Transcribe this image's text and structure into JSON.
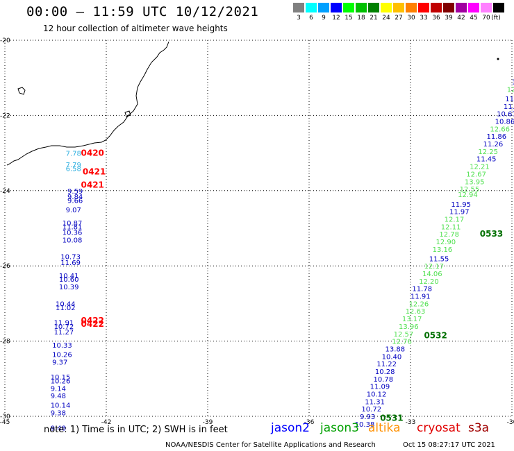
{
  "header": {
    "title": "00:00 — 11:59 UTC 10/12/2021",
    "subtitle": "12 hour collection of altimeter wave heights"
  },
  "scale": {
    "unit": "(ft)",
    "bins": [
      {
        "label": "3",
        "color": "#808080"
      },
      {
        "label": "6",
        "color": "#00ffff"
      },
      {
        "label": "9",
        "color": "#00a0ff"
      },
      {
        "label": "12",
        "color": "#0000ff"
      },
      {
        "label": "15",
        "color": "#00ff00"
      },
      {
        "label": "18",
        "color": "#00c000"
      },
      {
        "label": "21",
        "color": "#008000"
      },
      {
        "label": "24",
        "color": "#ffff00"
      },
      {
        "label": "27",
        "color": "#ffc000"
      },
      {
        "label": "30",
        "color": "#ff8000"
      },
      {
        "label": "33",
        "color": "#ff0000"
      },
      {
        "label": "36",
        "color": "#c00000"
      },
      {
        "label": "39",
        "color": "#800000"
      },
      {
        "label": "42",
        "color": "#a000a0"
      },
      {
        "label": "45",
        "color": "#ff00ff"
      },
      {
        "label": "70",
        "color": "#ff80ff"
      },
      {
        "label": "",
        "color": "#000000"
      }
    ]
  },
  "axes": {
    "lon_ticks": [
      "-45",
      "-42",
      "-39",
      "-36",
      "-33",
      "-30"
    ],
    "lat_ticks": [
      "-20",
      "-22",
      "-24",
      "-26",
      "-28",
      "-30"
    ]
  },
  "tracks": {
    "west": [
      {
        "lon": -43.2,
        "lat": -23.0,
        "v": "7.78",
        "c": "#30b0e0"
      },
      {
        "lon": -43.2,
        "lat": -23.3,
        "v": "7.79",
        "c": "#30b0e0"
      },
      {
        "lon": -43.2,
        "lat": -23.4,
        "v": "6.58",
        "c": "#30b0e0"
      },
      {
        "lon": -43.15,
        "lat": -24.0,
        "v": "9.59",
        "c": "#0000c0"
      },
      {
        "lon": -43.15,
        "lat": -24.15,
        "v": "9.84",
        "c": "#0000c0"
      },
      {
        "lon": -43.15,
        "lat": -24.25,
        "v": "9.66",
        "c": "#0000c0"
      },
      {
        "lon": -43.2,
        "lat": -24.5,
        "v": "9.07",
        "c": "#0000c0"
      },
      {
        "lon": -43.3,
        "lat": -24.85,
        "v": "10.87",
        "c": "#0000c0"
      },
      {
        "lon": -43.3,
        "lat": -24.95,
        "v": "11.81",
        "c": "#0000c0"
      },
      {
        "lon": -43.3,
        "lat": -25.1,
        "v": "10.36",
        "c": "#0000c0"
      },
      {
        "lon": -43.3,
        "lat": -25.3,
        "v": "10.08",
        "c": "#0000c0"
      },
      {
        "lon": -43.35,
        "lat": -25.75,
        "v": "10.73",
        "c": "#0000c0"
      },
      {
        "lon": -43.35,
        "lat": -25.9,
        "v": "11.69",
        "c": "#0000c0"
      },
      {
        "lon": -43.4,
        "lat": -26.25,
        "v": "10.41",
        "c": "#0000c0"
      },
      {
        "lon": -43.4,
        "lat": -26.35,
        "v": "10.60",
        "c": "#0000c0"
      },
      {
        "lon": -43.4,
        "lat": -26.55,
        "v": "10.39",
        "c": "#0000c0"
      },
      {
        "lon": -43.5,
        "lat": -27.0,
        "v": "10.44",
        "c": "#0000c0"
      },
      {
        "lon": -43.5,
        "lat": -27.1,
        "v": "11.02",
        "c": "#0000c0"
      },
      {
        "lon": -43.55,
        "lat": -27.5,
        "v": "11.91",
        "c": "#0000c0"
      },
      {
        "lon": -43.55,
        "lat": -27.6,
        "v": "10.72",
        "c": "#0000c0"
      },
      {
        "lon": -43.55,
        "lat": -27.75,
        "v": "11.27",
        "c": "#0000c0"
      },
      {
        "lon": -43.6,
        "lat": -28.1,
        "v": "10.33",
        "c": "#0000c0"
      },
      {
        "lon": -43.6,
        "lat": -28.35,
        "v": "10.26",
        "c": "#0000c0"
      },
      {
        "lon": -43.6,
        "lat": -28.55,
        "v": "9.37",
        "c": "#0000c0"
      },
      {
        "lon": -43.65,
        "lat": -28.95,
        "v": "10.15",
        "c": "#0000c0"
      },
      {
        "lon": -43.65,
        "lat": -29.05,
        "v": "10.26",
        "c": "#0000c0"
      },
      {
        "lon": -43.65,
        "lat": -29.25,
        "v": "9.14",
        "c": "#0000c0"
      },
      {
        "lon": -43.65,
        "lat": -29.45,
        "v": "9.48",
        "c": "#0000c0"
      },
      {
        "lon": -43.65,
        "lat": -29.7,
        "v": "10.14",
        "c": "#0000c0"
      },
      {
        "lon": -43.65,
        "lat": -29.9,
        "v": "9.38",
        "c": "#0000c0"
      },
      {
        "lon": -43.65,
        "lat": -29.95,
        "v": "9.48",
        "c": "#0000c0",
        "dy": 0.35
      }
    ],
    "east": [
      {
        "lon": -30.0,
        "lat": -21.1,
        "v": "10",
        "c": "#0000c0"
      },
      {
        "lon": -30.15,
        "lat": -21.3,
        "v": "12.",
        "c": "#50e050"
      },
      {
        "lon": -30.2,
        "lat": -21.55,
        "v": "11.",
        "c": "#0000c0"
      },
      {
        "lon": -30.25,
        "lat": -21.75,
        "v": "11.3",
        "c": "#0000c0"
      },
      {
        "lon": -30.45,
        "lat": -21.95,
        "v": "10.67",
        "c": "#0000c0"
      },
      {
        "lon": -30.5,
        "lat": -22.15,
        "v": "10.86",
        "c": "#0000c0"
      },
      {
        "lon": -30.65,
        "lat": -22.35,
        "v": "12.66",
        "c": "#50e050"
      },
      {
        "lon": -30.75,
        "lat": -22.55,
        "v": "11.86",
        "c": "#0000c0"
      },
      {
        "lon": -30.85,
        "lat": -22.75,
        "v": "11.26",
        "c": "#0000c0"
      },
      {
        "lon": -31.0,
        "lat": -22.95,
        "v": "12.25",
        "c": "#50e050"
      },
      {
        "lon": -31.05,
        "lat": -23.15,
        "v": "11.45",
        "c": "#0000c0"
      },
      {
        "lon": -31.25,
        "lat": -23.35,
        "v": "12.21",
        "c": "#50e050"
      },
      {
        "lon": -31.35,
        "lat": -23.55,
        "v": "12.67",
        "c": "#50e050"
      },
      {
        "lon": -31.4,
        "lat": -23.75,
        "v": "13.95",
        "c": "#50e050"
      },
      {
        "lon": -31.55,
        "lat": -23.95,
        "v": "12.55",
        "c": "#50e050"
      },
      {
        "lon": -31.6,
        "lat": -24.1,
        "v": "12.94",
        "c": "#50e050"
      },
      {
        "lon": -31.8,
        "lat": -24.35,
        "v": "11.95",
        "c": "#0000c0"
      },
      {
        "lon": -31.85,
        "lat": -24.55,
        "v": "11.97",
        "c": "#0000c0"
      },
      {
        "lon": -32.0,
        "lat": -24.75,
        "v": "12.17",
        "c": "#50e050"
      },
      {
        "lon": -32.1,
        "lat": -24.95,
        "v": "12.11",
        "c": "#50e050"
      },
      {
        "lon": -32.15,
        "lat": -25.15,
        "v": "12.78",
        "c": "#50e050"
      },
      {
        "lon": -32.25,
        "lat": -25.35,
        "v": "12.90",
        "c": "#50e050"
      },
      {
        "lon": -32.35,
        "lat": -25.55,
        "v": "13.16",
        "c": "#50e050"
      },
      {
        "lon": -32.45,
        "lat": -25.8,
        "v": "11.55",
        "c": "#0000c0"
      },
      {
        "lon": -32.6,
        "lat": -26.0,
        "v": "12.17",
        "c": "#50e050"
      },
      {
        "lon": -32.65,
        "lat": -26.2,
        "v": "14.06",
        "c": "#50e050"
      },
      {
        "lon": -32.75,
        "lat": -26.4,
        "v": "12.20",
        "c": "#50e050"
      },
      {
        "lon": -32.95,
        "lat": -26.6,
        "v": "11.78",
        "c": "#0000c0"
      },
      {
        "lon": -33.0,
        "lat": -26.8,
        "v": "11.91",
        "c": "#0000c0"
      },
      {
        "lon": -33.05,
        "lat": -27.0,
        "v": "12.26",
        "c": "#50e050"
      },
      {
        "lon": -33.15,
        "lat": -27.2,
        "v": "12.63",
        "c": "#50e050"
      },
      {
        "lon": -33.25,
        "lat": -27.4,
        "v": "13.17",
        "c": "#50e050"
      },
      {
        "lon": -33.35,
        "lat": -27.6,
        "v": "13.96",
        "c": "#50e050"
      },
      {
        "lon": -33.5,
        "lat": -27.8,
        "v": "12.57",
        "c": "#50e050"
      },
      {
        "lon": -33.55,
        "lat": -28.0,
        "v": "12.76",
        "c": "#50e050"
      },
      {
        "lon": -33.75,
        "lat": -28.2,
        "v": "13.88",
        "c": "#0000c0"
      },
      {
        "lon": -33.85,
        "lat": -28.4,
        "v": "10.40",
        "c": "#0000c0"
      },
      {
        "lon": -34.0,
        "lat": -28.6,
        "v": "11.22",
        "c": "#0000c0"
      },
      {
        "lon": -34.05,
        "lat": -28.8,
        "v": "10.28",
        "c": "#0000c0"
      },
      {
        "lon": -34.1,
        "lat": -29.0,
        "v": "10.78",
        "c": "#0000c0"
      },
      {
        "lon": -34.2,
        "lat": -29.2,
        "v": "11.09",
        "c": "#0000c0"
      },
      {
        "lon": -34.3,
        "lat": -29.4,
        "v": "10.12",
        "c": "#0000c0"
      },
      {
        "lon": -34.35,
        "lat": -29.6,
        "v": "11.31",
        "c": "#0000c0"
      },
      {
        "lon": -34.45,
        "lat": -29.8,
        "v": "10.72",
        "c": "#0000c0"
      },
      {
        "lon": -34.5,
        "lat": -30.0,
        "v": "9.93",
        "c": "#0000c0"
      },
      {
        "lon": -34.65,
        "lat": -30.2,
        "v": "10.38",
        "c": "#0000c0"
      }
    ],
    "times": [
      {
        "lon": -42.75,
        "lat": -23.0,
        "v": "0420",
        "c": "#ff0000"
      },
      {
        "lon": -42.7,
        "lat": -23.5,
        "v": "0421",
        "c": "#ff0000"
      },
      {
        "lon": -42.75,
        "lat": -23.85,
        "v": "0421",
        "c": "#ff0000"
      },
      {
        "lon": -42.75,
        "lat": -27.45,
        "v": "0422",
        "c": "#ff0000"
      },
      {
        "lon": -42.75,
        "lat": -27.55,
        "v": "0422",
        "c": "#ff0000"
      },
      {
        "lon": -30.95,
        "lat": -25.15,
        "v": "0533",
        "c": "#007000"
      },
      {
        "lon": -32.6,
        "lat": -27.85,
        "v": "0532",
        "c": "#007000"
      },
      {
        "lon": -33.9,
        "lat": -30.05,
        "v": "0531",
        "c": "#007000"
      }
    ]
  },
  "legend": {
    "note": "note: 1) Time is in UTC; 2) SWH is in feet",
    "sats": [
      {
        "name": "jason2",
        "color": "#0000ff"
      },
      {
        "name": "jason3",
        "color": "#00a000"
      },
      {
        "name": "altika",
        "color": "#ff9000"
      },
      {
        "name": "cryosat",
        "color": "#e00000"
      },
      {
        "name": "s3a",
        "color": "#a00000"
      }
    ]
  },
  "footer": {
    "left": "NOAA/NESDIS Center for Satellite Applications and Research",
    "right": "Oct 15 08:27:17 UTC 2021"
  }
}
